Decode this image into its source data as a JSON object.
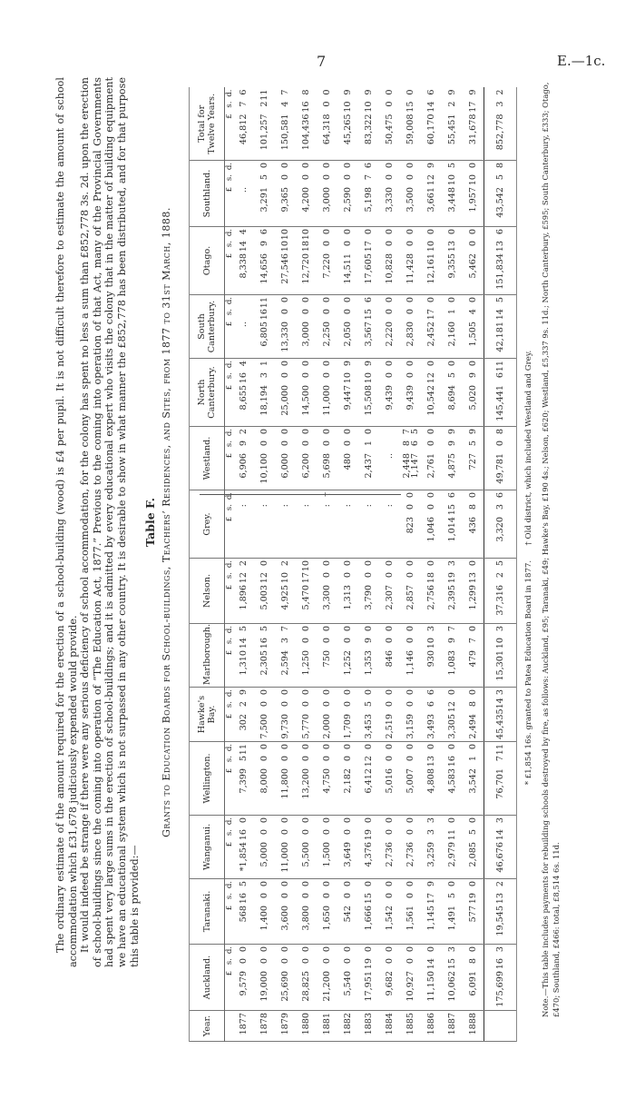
{
  "header": {
    "page_number": "7",
    "reference": "E.—1c."
  },
  "paragraphs": [
    "The ordinary estimate of the amount required for the erection of a school-building (wood) is £4 per pupil. It is not difficult therefore to estimate the amount of school accommodation which £31,678 judiciously expended would provide.",
    "It would indeed be strange if there were any serious deficiency of school accommodation, for the colony has spent no less a sum than £852,778 3s. 2d. upon the erection of school-buildings since the coming into operation of “The Education Act, 1877.” Previous to the coming into operation of that Act, many of the Provincial Governments had spent very large sums in the erection of school-buildings; and it is admitted by every educational expert who visits the colony that in the matter of building equipment we have an educational system which is not surpassed in any other country. It is desirable to show in what manner the £852,778 has been distributed, and for that purpose this table is provided:—"
  ],
  "table": {
    "title": "Table F.",
    "subtitle": "Grants to Education Boards for School-buildings, Teachers’ Residences, and Sites, from 1877 to 31st March, 1888.",
    "year_header": "Year.",
    "units": [
      "£",
      "s.",
      "d."
    ],
    "columns": [
      {
        "name": "Auckland.",
        "rows": [
          [
            "9,579",
            "0",
            "0"
          ],
          [
            "19,000",
            "0",
            "0"
          ],
          [
            "25,690",
            "0",
            "0"
          ],
          [
            "28,825",
            "0",
            "0"
          ],
          [
            "21,200",
            "0",
            "0"
          ],
          [
            "5,540",
            "0",
            "0"
          ],
          [
            "17,951",
            "19",
            "0"
          ],
          [
            "9,682",
            "0",
            "0"
          ],
          [
            "10,927",
            "0",
            "0"
          ],
          [
            "11,150",
            "14",
            "0"
          ],
          [
            "10,062",
            "15",
            "3"
          ],
          [
            "6,091",
            "8",
            "0"
          ]
        ],
        "total": [
          "175,699",
          "16",
          "3"
        ]
      },
      {
        "name": "Taranaki.",
        "rows": [
          [
            "568",
            "16",
            "5"
          ],
          [
            "1,400",
            "0",
            "0"
          ],
          [
            "3,600",
            "0",
            "0"
          ],
          [
            "3,800",
            "0",
            "0"
          ],
          [
            "1,650",
            "0",
            "0"
          ],
          [
            "542",
            "0",
            "0"
          ],
          [
            "1,666",
            "15",
            "0"
          ],
          [
            "1,542",
            "0",
            "0"
          ],
          [
            "1,561",
            "0",
            "0"
          ],
          [
            "1,145",
            "17",
            "9"
          ],
          [
            "1,491",
            "5",
            "0"
          ],
          [
            "577",
            "19",
            "0"
          ]
        ],
        "total": [
          "19,545",
          "13",
          "2"
        ]
      },
      {
        "name": "Wanganui.",
        "rows": [
          [
            "*1,854",
            "16",
            "0"
          ],
          [
            "5,000",
            "0",
            "0"
          ],
          [
            "11,000",
            "0",
            "0"
          ],
          [
            "5,500",
            "0",
            "0"
          ],
          [
            "1,500",
            "0",
            "0"
          ],
          [
            "3,649",
            "0",
            "0"
          ],
          [
            "4,376",
            "19",
            "0"
          ],
          [
            "2,736",
            "0",
            "0"
          ],
          [
            "2,736",
            "0",
            "0"
          ],
          [
            "3,259",
            "3",
            "3"
          ],
          [
            "2,979",
            "11",
            "0"
          ],
          [
            "2,085",
            "5",
            "0"
          ]
        ],
        "total": [
          "46,676",
          "14",
          "3"
        ]
      },
      {
        "name": "Wellington.",
        "rows": [
          [
            "7,399",
            "5",
            "11"
          ],
          [
            "8,000",
            "0",
            "0"
          ],
          [
            "11,800",
            "0",
            "0"
          ],
          [
            "13,200",
            "0",
            "0"
          ],
          [
            "4,750",
            "0",
            "0"
          ],
          [
            "2,182",
            "0",
            "0"
          ],
          [
            "6,412",
            "12",
            "0"
          ],
          [
            "5,016",
            "0",
            "0"
          ],
          [
            "5,007",
            "0",
            "0"
          ],
          [
            "4,808",
            "13",
            "0"
          ],
          [
            "4,583",
            "16",
            "0"
          ],
          [
            "3,542",
            "1",
            "0"
          ]
        ],
        "total": [
          "76,701",
          "7",
          "11"
        ]
      },
      {
        "name": "Hawke's Bay.",
        "rows": [
          [
            "302",
            "2",
            "9"
          ],
          [
            "7,500",
            "0",
            "0"
          ],
          [
            "9,730",
            "0",
            "0"
          ],
          [
            "5,770",
            "0",
            "0"
          ],
          [
            "2,000",
            "0",
            "0"
          ],
          [
            "1,709",
            "0",
            "0"
          ],
          [
            "3,453",
            "5",
            "0"
          ],
          [
            "2,519",
            "0",
            "0"
          ],
          [
            "3,159",
            "0",
            "0"
          ],
          [
            "3,493",
            "6",
            "6"
          ],
          [
            "3,305",
            "12",
            "0"
          ],
          [
            "2,494",
            "8",
            "0"
          ]
        ],
        "total": [
          "45,435",
          "14",
          "3"
        ]
      },
      {
        "name": "Marlborough.",
        "rows": [
          [
            "1,310",
            "14",
            "5"
          ],
          [
            "2,305",
            "16",
            "5"
          ],
          [
            "2,594",
            "3",
            "7"
          ],
          [
            "1,250",
            "0",
            "0"
          ],
          [
            "750",
            "0",
            "0"
          ],
          [
            "1,252",
            "0",
            "0"
          ],
          [
            "1,353",
            "9",
            "0"
          ],
          [
            "846",
            "0",
            "0"
          ],
          [
            "1,146",
            "0",
            "0"
          ],
          [
            "930",
            "10",
            "3"
          ],
          [
            "1,083",
            "9",
            "7"
          ],
          [
            "479",
            "7",
            "0"
          ]
        ],
        "total": [
          "15,301",
          "10",
          "3"
        ]
      },
      {
        "name": "Nelson.",
        "rows": [
          [
            "1,896",
            "12",
            "2"
          ],
          [
            "5,003",
            "12",
            "0"
          ],
          [
            "4,925",
            "10",
            "2"
          ],
          [
            "5,470",
            "17",
            "10"
          ],
          [
            "3,300",
            "0",
            "0"
          ],
          [
            "1,313",
            "0",
            "0"
          ],
          [
            "3,790",
            "0",
            "0"
          ],
          [
            "2,307",
            "0",
            "0"
          ],
          [
            "2,857",
            "0",
            "0"
          ],
          [
            "2,756",
            "18",
            "0"
          ],
          [
            "2,395",
            "19",
            "3"
          ],
          [
            "1,299",
            "13",
            "0"
          ]
        ],
        "total": [
          "37,316",
          "2",
          "5"
        ]
      },
      {
        "name": "Grey.",
        "rows": [
          [
            "",
            ":",
            ""
          ],
          [
            "",
            ":",
            ""
          ],
          [
            "",
            ":",
            ""
          ],
          [
            "",
            ":",
            ""
          ],
          [
            "",
            ":",
            "†"
          ],
          [
            "",
            ":",
            ""
          ],
          [
            "",
            ":",
            ""
          ],
          [
            "",
            ":",
            ""
          ],
          [
            "823",
            "0",
            "0"
          ],
          [
            "1,046",
            "0",
            "0"
          ],
          [
            "1,014",
            "15",
            "6"
          ],
          [
            "436",
            "8",
            "0"
          ]
        ],
        "total": [
          "3,320",
          "3",
          "6"
        ]
      },
      {
        "name": "Westland.",
        "rows": [
          [
            "6,906",
            "9",
            "2"
          ],
          [
            "10,100",
            "0",
            "0"
          ],
          [
            "6,000",
            "0",
            "0"
          ],
          [
            "6,200",
            "0",
            "0"
          ],
          [
            "5,698",
            "0",
            "0"
          ],
          [
            "480",
            "0",
            "0"
          ],
          [
            "2,437",
            "1",
            "0"
          ],
          [
            "..",
            "",
            ""
          ],
          [
            "2,448\n1,147",
            "8\n6",
            "7\n5"
          ],
          [
            "2,761",
            "0",
            "0"
          ],
          [
            "4,875",
            "9",
            "9"
          ],
          [
            "727",
            "5",
            "9"
          ]
        ],
        "total": [
          "49,781",
          "0",
          "8"
        ]
      },
      {
        "name": "North\nCanterbury.",
        "rows": [
          [
            "8,655",
            "16",
            "4"
          ],
          [
            "18,194",
            "3",
            "1"
          ],
          [
            "25,000",
            "0",
            "0"
          ],
          [
            "14,500",
            "0",
            "0"
          ],
          [
            "11,000",
            "0",
            "0"
          ],
          [
            "9,447",
            "10",
            "9"
          ],
          [
            "15,508",
            "10",
            "9"
          ],
          [
            "9,439",
            "0",
            "0"
          ],
          [
            "9,439",
            "0",
            "0"
          ],
          [
            "10,542",
            "12",
            "0"
          ],
          [
            "8,694",
            "5",
            "0"
          ],
          [
            "5,020",
            "9",
            "0"
          ]
        ],
        "total": [
          "145,441",
          "6",
          "11"
        ]
      },
      {
        "name": "South\nCanterbury.",
        "rows": [
          [
            "..",
            "",
            ""
          ],
          [
            "6,805",
            "16",
            "11"
          ],
          [
            "13,330",
            "0",
            "0"
          ],
          [
            "3,000",
            "0",
            "0"
          ],
          [
            "2,250",
            "0",
            "0"
          ],
          [
            "2,050",
            "0",
            "0"
          ],
          [
            "3,567",
            "15",
            "6"
          ],
          [
            "2,220",
            "0",
            "0"
          ],
          [
            "2,830",
            "0",
            "0"
          ],
          [
            "2,452",
            "17",
            "0"
          ],
          [
            "2,160",
            "1",
            "0"
          ],
          [
            "1,505",
            "4",
            "0"
          ]
        ],
        "total": [
          "42,181",
          "14",
          "5"
        ]
      },
      {
        "name": "Otago.",
        "rows": [
          [
            "8,338",
            "14",
            "4"
          ],
          [
            "14,656",
            "9",
            "6"
          ],
          [
            "27,546",
            "10",
            "10"
          ],
          [
            "12,720",
            "18",
            "10"
          ],
          [
            "7,220",
            "0",
            "0"
          ],
          [
            "14,511",
            "0",
            "0"
          ],
          [
            "17,605",
            "17",
            "0"
          ],
          [
            "10,828",
            "0",
            "0"
          ],
          [
            "11,428",
            "0",
            "0"
          ],
          [
            "12,161",
            "10",
            "0"
          ],
          [
            "9,355",
            "13",
            "0"
          ],
          [
            "5,462",
            "0",
            "0"
          ]
        ],
        "total": [
          "151,834",
          "13",
          "6"
        ]
      },
      {
        "name": "Southland.",
        "rows": [
          [
            "..",
            "",
            ""
          ],
          [
            "3,291",
            "5",
            "0"
          ],
          [
            "9,365",
            "0",
            "0"
          ],
          [
            "4,200",
            "0",
            "0"
          ],
          [
            "3,000",
            "0",
            "0"
          ],
          [
            "2,590",
            "0",
            "0"
          ],
          [
            "5,198",
            "7",
            "6"
          ],
          [
            "3,330",
            "0",
            "0"
          ],
          [
            "3,500",
            "0",
            "0"
          ],
          [
            "3,661",
            "12",
            "9"
          ],
          [
            "3,448",
            "10",
            "5"
          ],
          [
            "1,957",
            "10",
            "0"
          ]
        ],
        "total": [
          "43,542",
          "5",
          "8"
        ]
      },
      {
        "name": "Total for\nTwelve Years.",
        "rows": [
          [
            "46,812",
            "7",
            "6"
          ],
          [
            "101,257",
            "2",
            "11"
          ],
          [
            "150,581",
            "4",
            "7"
          ],
          [
            "104,436",
            "16",
            "8"
          ],
          [
            "64,318",
            "0",
            "0"
          ],
          [
            "45,265",
            "10",
            "9"
          ],
          [
            "83,322",
            "10",
            "9"
          ],
          [
            "50,475",
            "0",
            "0"
          ],
          [
            "59,008",
            "15",
            "0"
          ],
          [
            "60,170",
            "14",
            "6"
          ],
          [
            "55,451",
            "2",
            "9"
          ],
          [
            "31,678",
            "17",
            "9"
          ]
        ],
        "total": [
          "852,778",
          "3",
          "2"
        ]
      }
    ],
    "years": [
      "1877",
      "1878",
      "1879",
      "1880",
      "1881",
      "1882",
      "1883",
      "1884",
      "1885",
      "1886",
      "1887",
      "1888"
    ]
  },
  "footnotes": {
    "star_and_dagger": "* £1,854 16s. granted to Patea Education Board in 1877.      † Old district, which included Westland and Grey.",
    "note": "Note.—This table includes payments for rebuilding schools destroyed by fire, as follows: Auckland, £95; Taranaki, £49; Hawke's Bay, £190 4s.; Nelson, £620; Westland, £5,337 9s. 11d.; North Canterbury, £595; South Canterbury, £333; Otago, £470; Southland, £466: total, £8,514 6s. 11d."
  }
}
